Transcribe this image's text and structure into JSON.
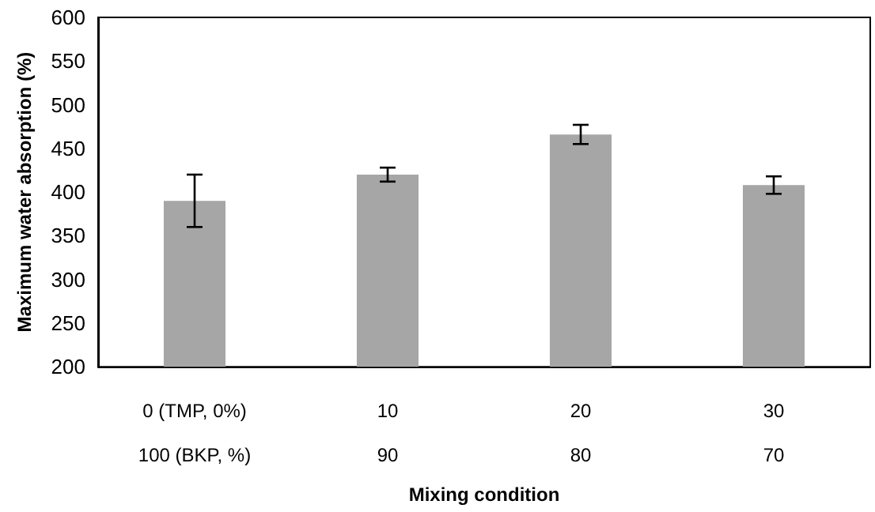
{
  "chart_data": {
    "type": "bar",
    "xlabel": "Mixing condition",
    "ylabel": "Maximum water absorption (%)",
    "categories": [
      "0 (TMP, 0%)\n100 (BKP, %)",
      "10\n90",
      "20\n80",
      "30\n70"
    ],
    "values": [
      390,
      420,
      466,
      408
    ],
    "errors": [
      30,
      8,
      11,
      10
    ],
    "color": "#a6a6a6",
    "ylim": [
      200,
      600
    ],
    "yticks": [
      200,
      250,
      300,
      350,
      400,
      450,
      500,
      550,
      600
    ],
    "grid": false
  }
}
